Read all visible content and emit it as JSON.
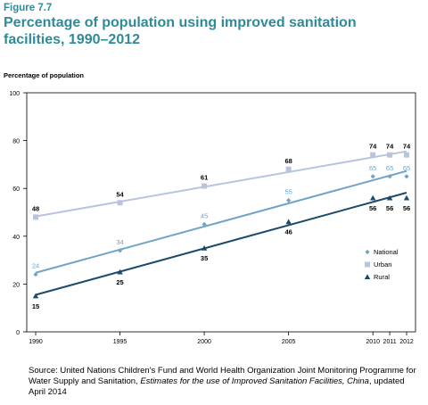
{
  "figure_label": "Figure 7.7",
  "title": "Percentage of population using improved sanitation facilities, 1990–2012",
  "ylabel": "Percentage of population",
  "source": {
    "prefix": "Source: United Nations Children's Fund and World Health Organization Joint Monitoring Programme for Water Supply and Sanitation, ",
    "italic_title": "Estimates for the use of Improved Sanitation Facilities, China",
    "suffix": ", updated April 2014"
  },
  "chart_data": {
    "type": "line",
    "x": [
      1990,
      1995,
      2000,
      2005,
      2010,
      2011,
      2012
    ],
    "ylim": [
      0,
      100
    ],
    "yticks": [
      0,
      20,
      40,
      60,
      80,
      100
    ],
    "xticks": [
      "1990",
      "1995",
      "2000",
      "2005",
      "2010",
      "2011",
      "2012"
    ],
    "grid": false,
    "legend_position": "lower-right",
    "series": [
      {
        "name": "National",
        "values": [
          24,
          34,
          45,
          55,
          65,
          65,
          65
        ],
        "marker": "diamond",
        "color": "#6fa3c8",
        "label_color": "#6fa3c8",
        "labels": [
          "24",
          "34",
          "45",
          "55",
          "65",
          "65",
          "65"
        ]
      },
      {
        "name": "Urban",
        "values": [
          48,
          54,
          61,
          68,
          74,
          74,
          74
        ],
        "marker": "square",
        "color": "#b8c4de",
        "label_color": "#000000",
        "labels": [
          "48",
          "54",
          "61",
          "68",
          "74",
          "74",
          "74"
        ]
      },
      {
        "name": "Rural",
        "values": [
          15,
          25,
          35,
          46,
          56,
          56,
          56
        ],
        "marker": "triangle",
        "color": "#1b4a6b",
        "label_color": "#000000",
        "labels": [
          "15",
          "25",
          "35",
          "46",
          "56",
          "56",
          "56"
        ]
      }
    ]
  }
}
